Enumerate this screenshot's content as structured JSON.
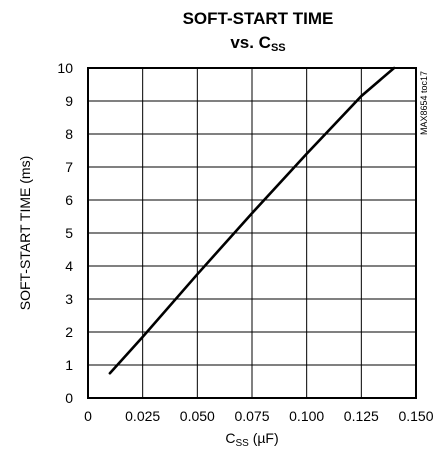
{
  "chart_data": {
    "type": "line",
    "title_line1": "SOFT-START TIME",
    "title_line2_prefix": "vs. C",
    "title_line2_subscript": "SS",
    "xlabel_prefix": "C",
    "xlabel_subscript": "SS",
    "xlabel_suffix": " (µF)",
    "ylabel": "SOFT-START TIME (ms)",
    "side_code": "MAX8654 toc17",
    "xlim": [
      0,
      0.15
    ],
    "ylim": [
      0,
      10
    ],
    "grid": true,
    "x_ticks": [
      0,
      0.025,
      0.05,
      0.075,
      0.1,
      0.125,
      0.15
    ],
    "x_tick_labels": [
      "0",
      "0.025",
      "0.050",
      "0.075",
      "0.100",
      "0.125",
      "0.150"
    ],
    "y_ticks": [
      0,
      1,
      2,
      3,
      4,
      5,
      6,
      7,
      8,
      9,
      10
    ],
    "y_tick_labels": [
      "0",
      "1",
      "2",
      "3",
      "4",
      "5",
      "6",
      "7",
      "8",
      "9",
      "10"
    ],
    "series": [
      {
        "x": [
          0.01,
          0.025,
          0.05,
          0.075,
          0.1,
          0.125,
          0.14
        ],
        "y": [
          0.75,
          1.85,
          3.75,
          5.6,
          7.4,
          9.15,
          10.0
        ]
      }
    ]
  }
}
